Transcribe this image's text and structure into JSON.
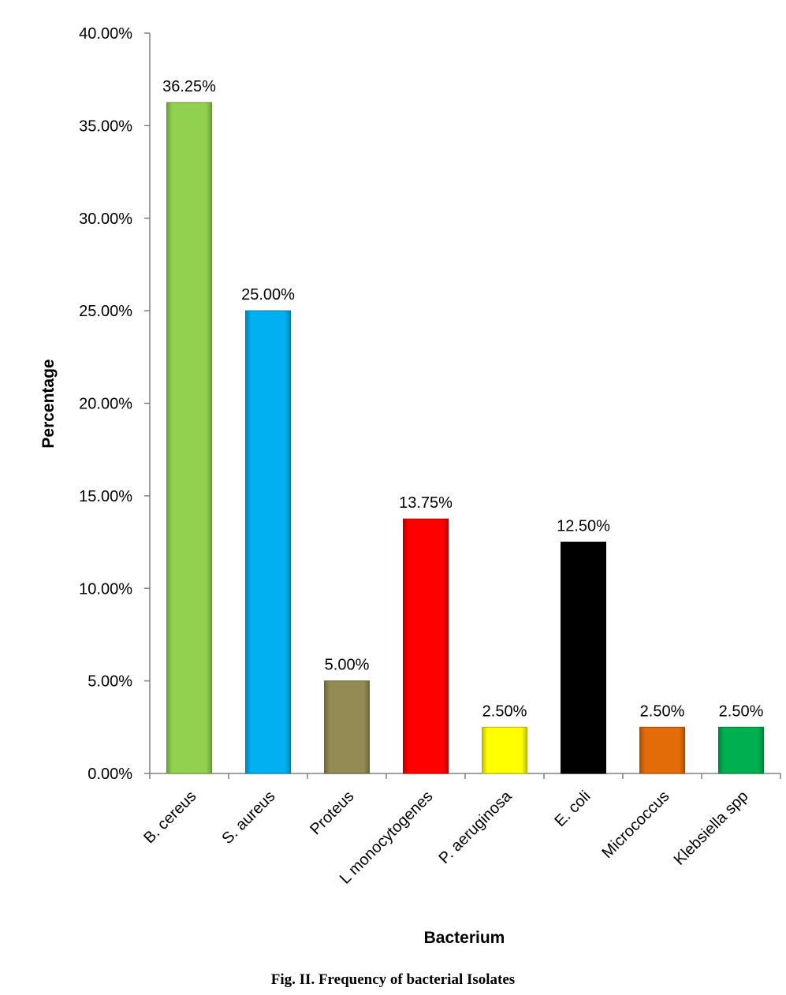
{
  "chart_data": {
    "type": "bar",
    "categories": [
      "B. cereus",
      "S. aureus",
      "Proteus",
      "L monocytogenes",
      "P. aeruginosa",
      "E. coli",
      "Micrococcus",
      "Klebsiella spp"
    ],
    "values": [
      36.25,
      25.0,
      5.0,
      13.75,
      2.5,
      12.5,
      2.5,
      2.5
    ],
    "data_labels": [
      "36.25%",
      "25.00%",
      "5.00%",
      "13.75%",
      "2.50%",
      "12.50%",
      "2.50%",
      "2.50%"
    ],
    "colors": [
      "#92d050",
      "#00b0f0",
      "#948a54",
      "#ff0000",
      "#ffff00",
      "#000000",
      "#e36c09",
      "#00b050"
    ],
    "ylim": [
      0,
      40
    ],
    "yticks": [
      0,
      5,
      10,
      15,
      20,
      25,
      30,
      35,
      40
    ],
    "ytick_labels": [
      "0.00%",
      "5.00%",
      "10.00%",
      "15.00%",
      "20.00%",
      "25.00%",
      "30.00%",
      "35.00%",
      "40.00%"
    ],
    "xlabel": "Bacterium",
    "ylabel": "Percentage",
    "grid": false,
    "legend": "none"
  },
  "caption": "Fig. II.  Frequency of bacterial Isolates"
}
